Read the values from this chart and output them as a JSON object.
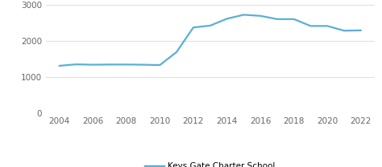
{
  "years": [
    2004,
    2005,
    2006,
    2007,
    2008,
    2009,
    2010,
    2011,
    2012,
    2013,
    2014,
    2015,
    2016,
    2017,
    2018,
    2019,
    2020,
    2021,
    2022
  ],
  "values": [
    1320,
    1360,
    1350,
    1355,
    1355,
    1350,
    1340,
    1700,
    2380,
    2430,
    2620,
    2730,
    2700,
    2610,
    2610,
    2420,
    2420,
    2290,
    2300
  ],
  "line_color": "#5bafd6",
  "legend_label": "Keys Gate Charter School",
  "ylim": [
    0,
    3000
  ],
  "yticks": [
    0,
    1000,
    2000,
    3000
  ],
  "xticks": [
    2004,
    2006,
    2008,
    2010,
    2012,
    2014,
    2016,
    2018,
    2020,
    2022
  ],
  "xlim": [
    2003.2,
    2022.8
  ],
  "grid_color": "#e0e0e0",
  "background_color": "#ffffff",
  "tick_color": "#666666",
  "line_width": 1.6,
  "tick_fontsize": 7.5,
  "legend_fontsize": 7.5
}
